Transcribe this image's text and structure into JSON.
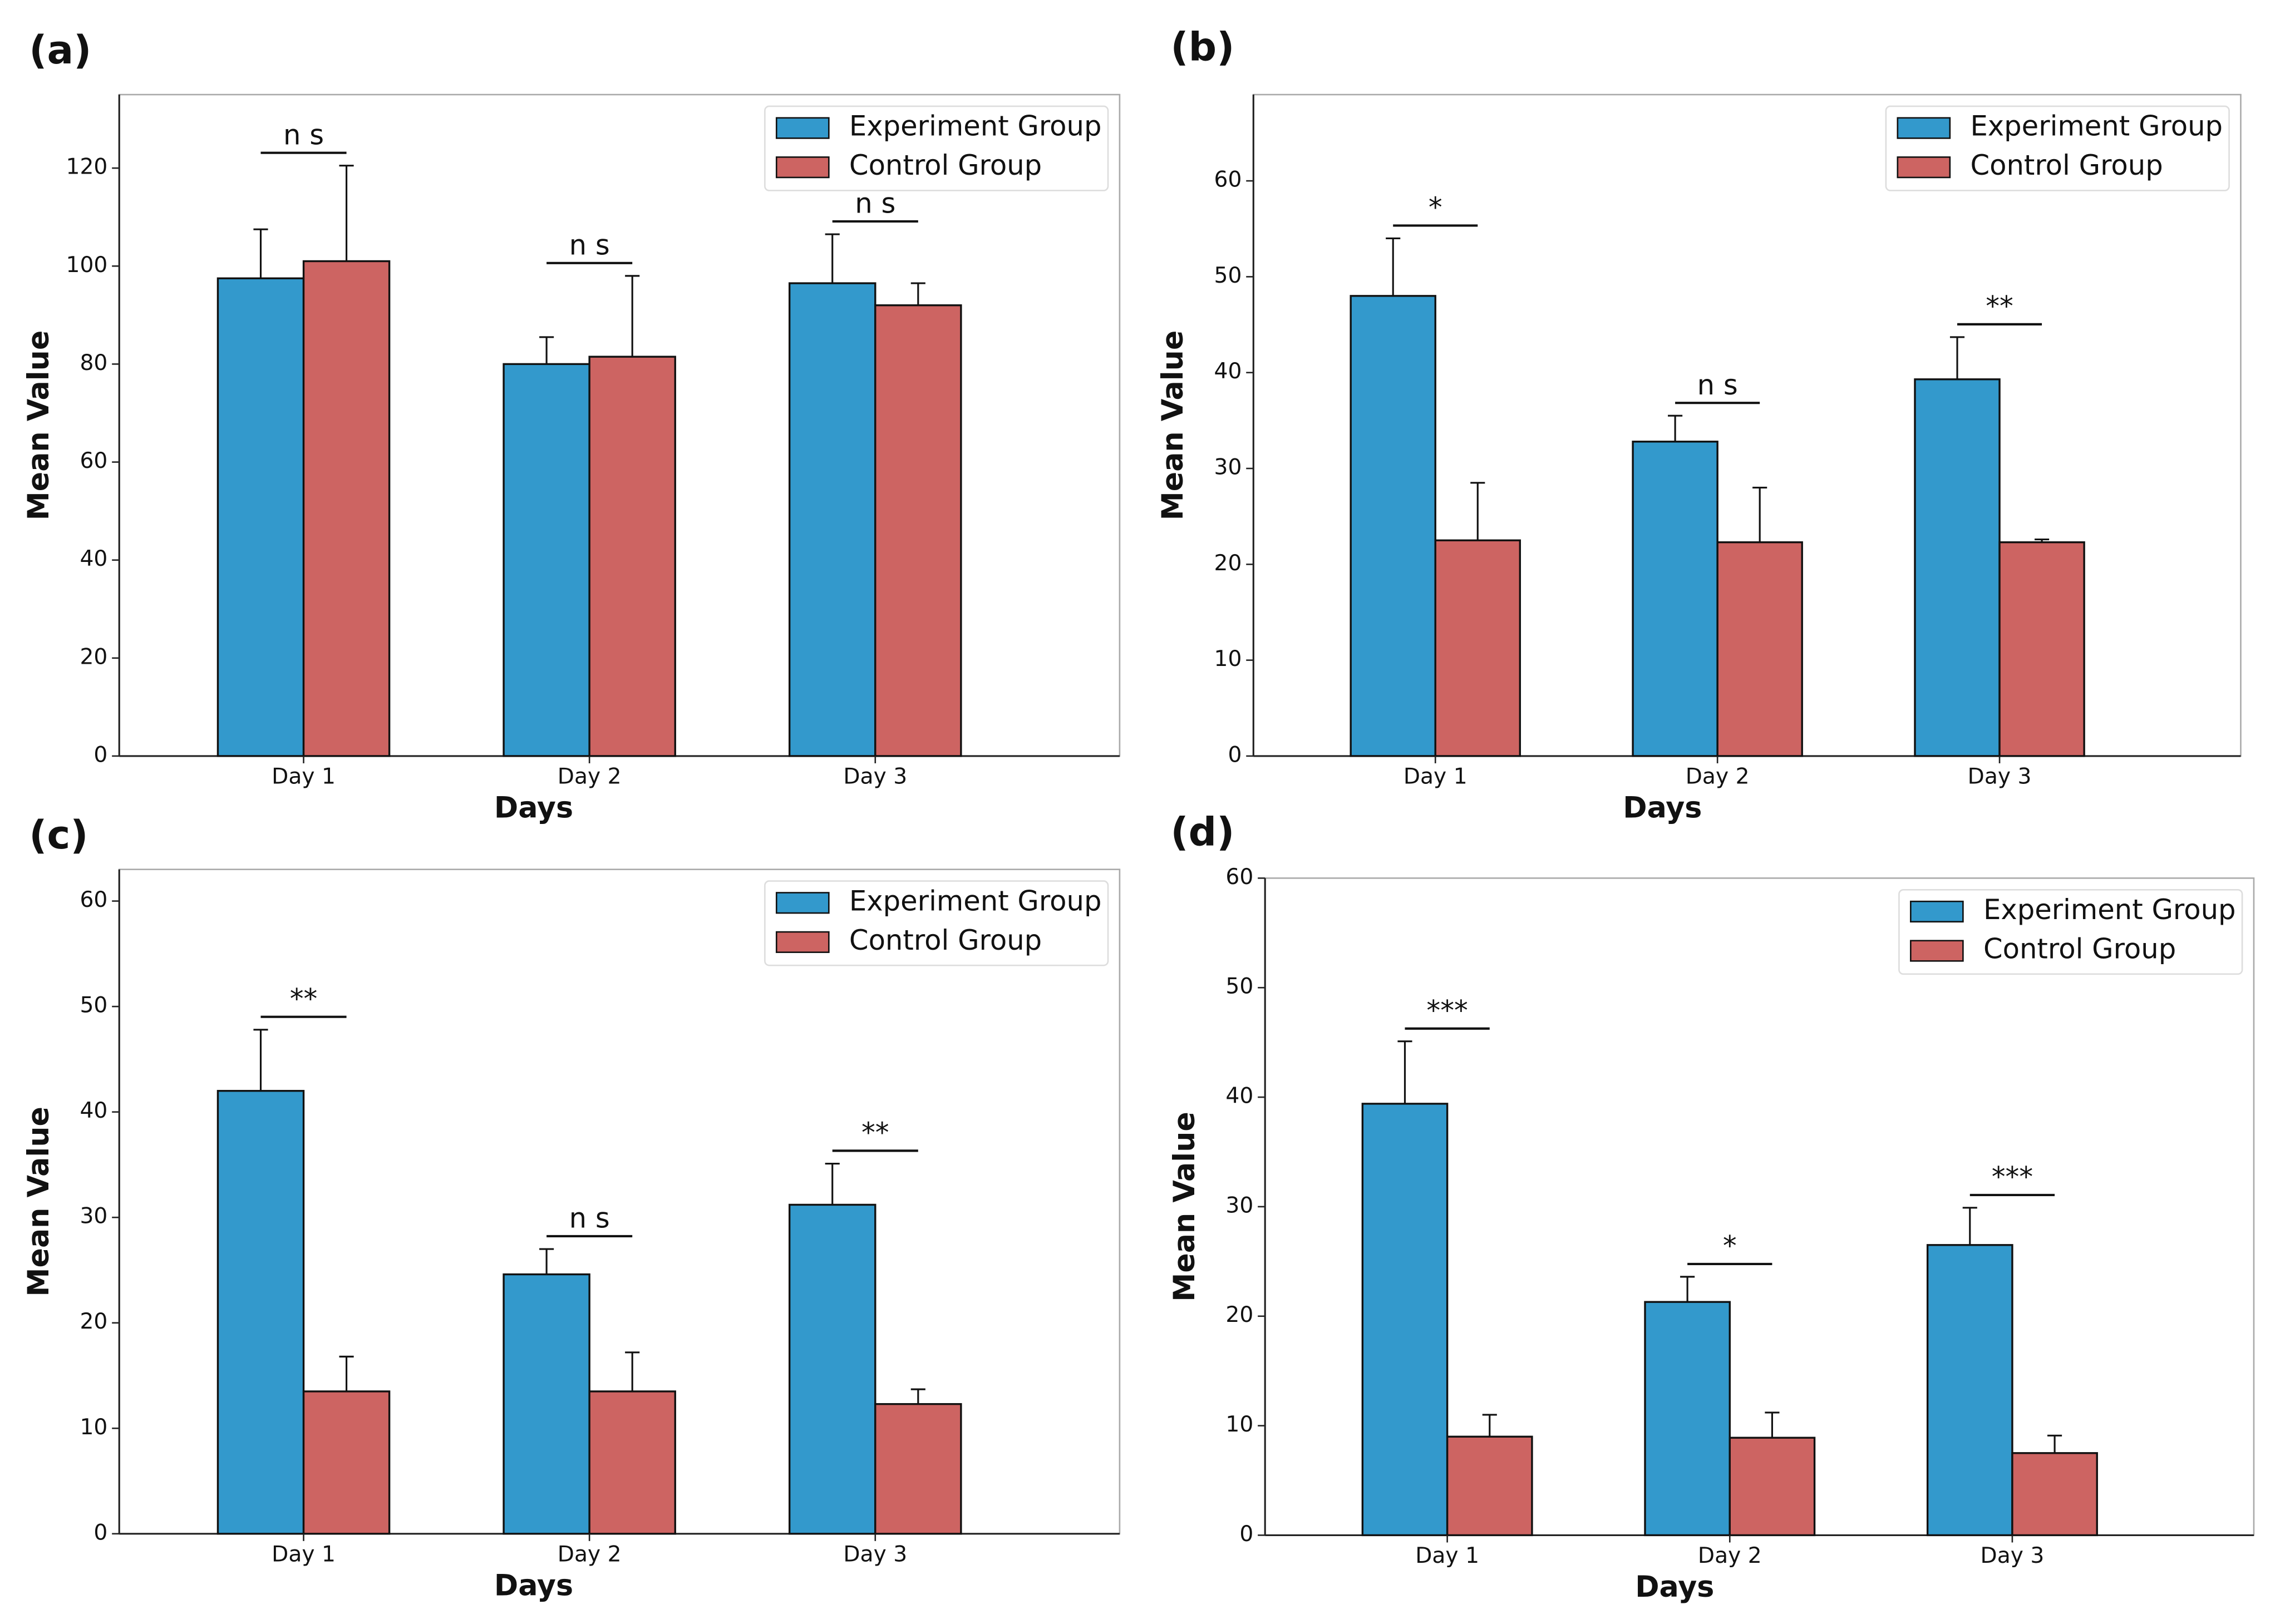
{
  "chart_data": [
    {
      "type": "bar",
      "label": "(a)",
      "xlabel": "Days",
      "ylabel": "Mean Value",
      "categories": [
        "Day 1",
        "Day 2",
        "Day 3"
      ],
      "series": [
        {
          "name": "Experiment Group",
          "color": "#3399cc",
          "values": [
            97.5,
            80,
            96.5
          ],
          "errors": [
            10,
            5.5,
            10
          ]
        },
        {
          "name": "Control Group",
          "color": "#cd6462",
          "values": [
            101,
            81.5,
            92
          ],
          "errors": [
            19.5,
            16.5,
            4.5
          ]
        }
      ],
      "significance": [
        "n s",
        "n s",
        "n s"
      ],
      "ylim": [
        0,
        135
      ],
      "yticks": [
        0,
        20,
        40,
        60,
        80,
        100,
        120
      ],
      "legend": "upper right"
    },
    {
      "type": "bar",
      "label": "(b)",
      "xlabel": "Days",
      "ylabel": "Mean Value",
      "categories": [
        "Day 1",
        "Day 2",
        "Day 3"
      ],
      "series": [
        {
          "name": "Experiment Group",
          "color": "#3399cc",
          "values": [
            48,
            32.8,
            39.3
          ],
          "errors": [
            6,
            2.7,
            4.4
          ]
        },
        {
          "name": "Control Group",
          "color": "#cd6462",
          "values": [
            22.5,
            22.3,
            22.3
          ],
          "errors": [
            6,
            5.7,
            0.3
          ]
        }
      ],
      "significance": [
        "*",
        "n s",
        "**"
      ],
      "ylim": [
        0,
        69
      ],
      "yticks": [
        0,
        10,
        20,
        30,
        40,
        50,
        60
      ],
      "legend": "upper right"
    },
    {
      "type": "bar",
      "label": "(c)",
      "xlabel": "Days",
      "ylabel": "Mean Value",
      "categories": [
        "Day 1",
        "Day 2",
        "Day 3"
      ],
      "series": [
        {
          "name": "Experiment Group",
          "color": "#3399cc",
          "values": [
            42,
            24.6,
            31.2
          ],
          "errors": [
            5.8,
            2.4,
            3.9
          ]
        },
        {
          "name": "Control Group",
          "color": "#cd6462",
          "values": [
            13.5,
            13.5,
            12.3
          ],
          "errors": [
            3.3,
            3.7,
            1.4
          ]
        }
      ],
      "significance": [
        "**",
        "n s",
        "**"
      ],
      "ylim": [
        0,
        63
      ],
      "yticks": [
        0,
        10,
        20,
        30,
        40,
        50,
        60
      ],
      "legend": "upper right"
    },
    {
      "type": "bar",
      "label": "(d)",
      "xlabel": "Days",
      "ylabel": "Mean Value",
      "categories": [
        "Day 1",
        "Day 2",
        "Day 3"
      ],
      "series": [
        {
          "name": "Experiment Group",
          "color": "#3399cc",
          "values": [
            39.4,
            21.3,
            26.5
          ],
          "errors": [
            5.7,
            2.3,
            3.4
          ]
        },
        {
          "name": "Control Group",
          "color": "#cd6462",
          "values": [
            9,
            8.9,
            7.5
          ],
          "errors": [
            2,
            2.3,
            1.6
          ]
        }
      ],
      "significance": [
        "***",
        "*",
        "***"
      ],
      "ylim": [
        0,
        60
      ],
      "yticks": [
        0,
        10,
        20,
        30,
        40,
        50,
        60
      ],
      "legend": "upper right"
    }
  ]
}
